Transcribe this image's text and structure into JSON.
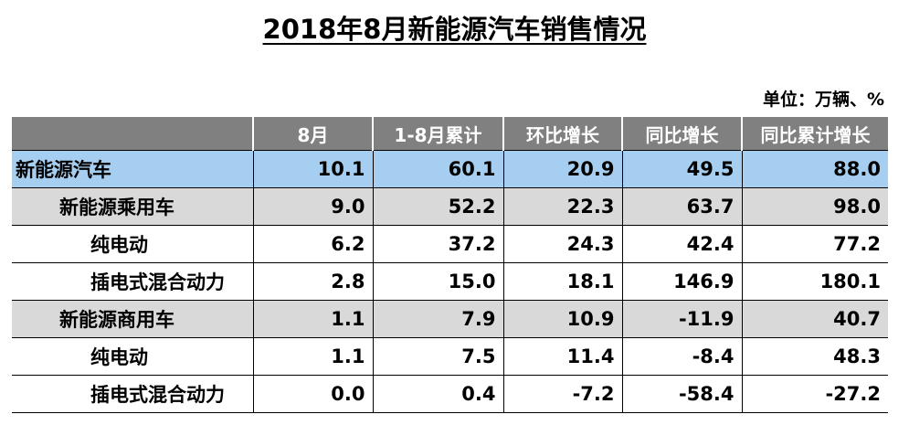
{
  "title": "2018年8月新能源汽车销售情况",
  "unit": "单位：万辆、%",
  "table": {
    "headers": [
      "",
      "8月",
      "1-8月累计",
      "环比增长",
      "同比增长",
      "同比累计增长"
    ],
    "rows": [
      {
        "name": "新能源汽车",
        "level": 0,
        "values": [
          "10.1",
          "60.1",
          "20.9",
          "49.5",
          "88.0"
        ]
      },
      {
        "name": "新能源乘用车",
        "level": 1,
        "values": [
          "9.0",
          "52.2",
          "22.3",
          "63.7",
          "98.0"
        ]
      },
      {
        "name": "纯电动",
        "level": 2,
        "values": [
          "6.2",
          "37.2",
          "24.3",
          "42.4",
          "77.2"
        ]
      },
      {
        "name": "插电式混合动力",
        "level": 2,
        "values": [
          "2.8",
          "15.0",
          "18.1",
          "146.9",
          "180.1"
        ]
      },
      {
        "name": "新能源商用车",
        "level": 1,
        "values": [
          "1.1",
          "7.9",
          "10.9",
          "-11.9",
          "40.7"
        ]
      },
      {
        "name": "纯电动",
        "level": 2,
        "values": [
          "1.1",
          "7.5",
          "11.4",
          "-8.4",
          "48.3"
        ]
      },
      {
        "name": "插电式混合动力",
        "level": 2,
        "values": [
          "0.0",
          "0.4",
          "-7.2",
          "-58.4",
          "-27.2"
        ]
      }
    ]
  },
  "colors": {
    "header_bg": "#808080",
    "total_row_bg": "#a6cef0",
    "category_row_bg": "#d9d9d9",
    "detail_row_bg": "#ffffff"
  }
}
